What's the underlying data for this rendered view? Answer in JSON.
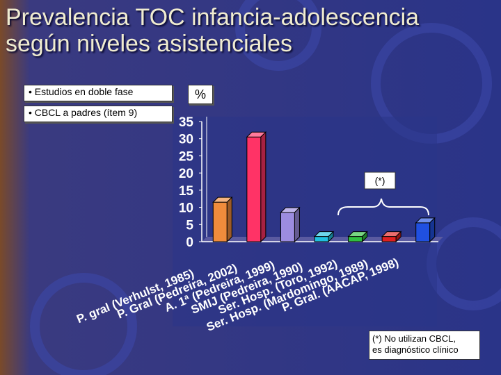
{
  "title_line1": "Prevalencia TOC infancia-adolescencia",
  "title_line2": "según niveles asistenciales",
  "notes": [
    "• Estudios en doble fase",
    "• CBCL a padres (ítem 9)"
  ],
  "unit_label": "%",
  "asterisk_label": "(*)",
  "footnote_line1": "(*) No utilizan CBCL,",
  "footnote_line2": "es diagnóstico clínico",
  "colors": {
    "background": "#2a3488",
    "title": "#f0ecd0"
  },
  "chart_data": {
    "type": "bar",
    "title": "",
    "xlabel": "",
    "ylabel": "%",
    "ylim": [
      0,
      35
    ],
    "yticks": [
      0,
      5,
      10,
      15,
      20,
      25,
      30,
      35
    ],
    "grid": false,
    "categories": [
      "P. gral (Verhulst, 1985)",
      "P. Gral (Pedreira, 2002)",
      "A. 1ª (Pedreira, 1999)",
      "SMIJ (Pedreira, 1990)",
      "Ser. Hosp. (Toro, 1992)",
      "Ser. Hosp. (Mardomingo, 1989)",
      "P. Gral. (AACAP, 1998)"
    ],
    "values": [
      11.5,
      30.5,
      8.5,
      1.5,
      1.5,
      1.5,
      5.5
    ],
    "bar_colors": [
      "#f08c3c",
      "#ff3366",
      "#9c8ce0",
      "#20c0e0",
      "#30c040",
      "#e02020",
      "#2050e0"
    ]
  }
}
